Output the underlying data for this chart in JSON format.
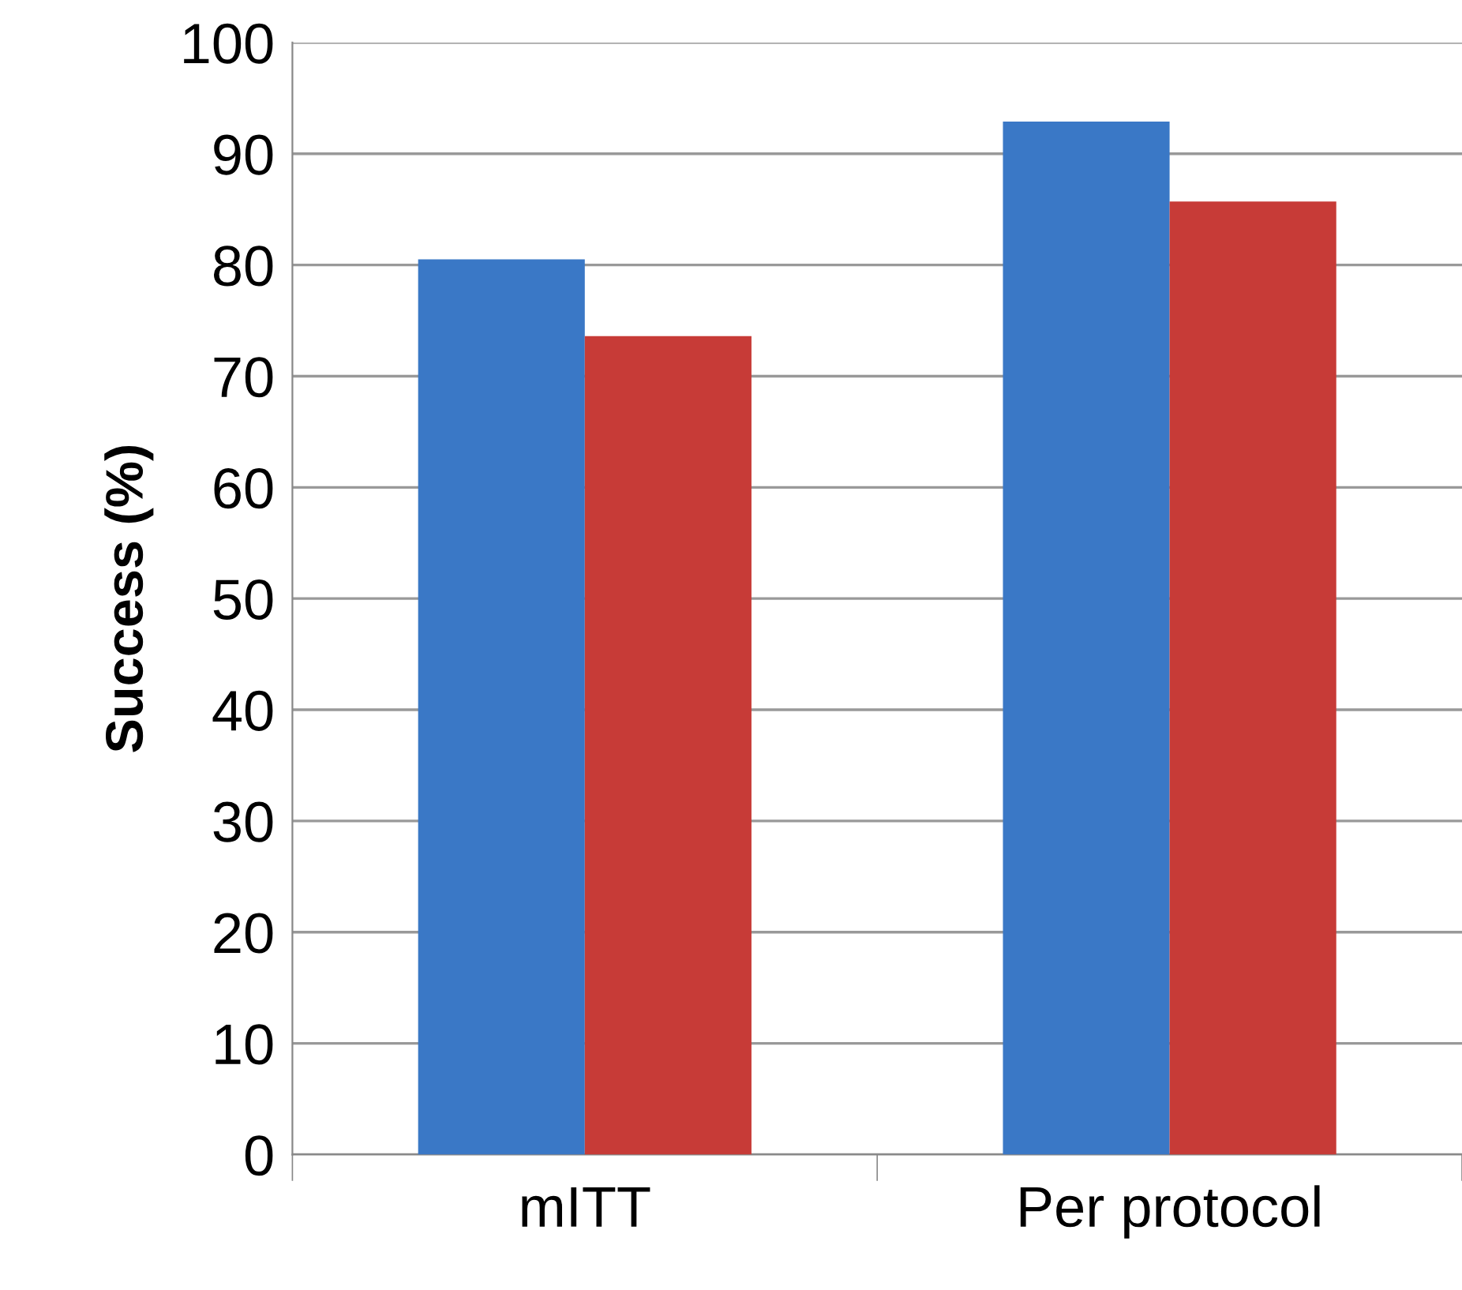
{
  "chart_data": {
    "type": "bar",
    "ylabel": "Success (%)",
    "categories": [
      "mITT",
      "Per protocol"
    ],
    "series": [
      {
        "color": "#3a78c6",
        "values": [
          80.5,
          92.9
        ]
      },
      {
        "color": "#c73b37",
        "values": [
          73.6,
          85.7
        ]
      }
    ],
    "ylim": [
      0,
      100
    ],
    "yticks": [
      0,
      10,
      20,
      30,
      40,
      50,
      60,
      70,
      80,
      90,
      100
    ],
    "grid": "y",
    "legend": false
  }
}
